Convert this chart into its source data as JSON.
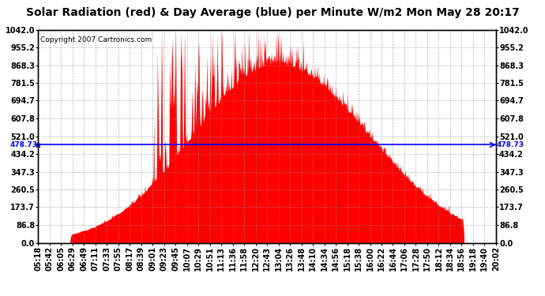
{
  "title": "Solar Radiation (red) & Day Average (blue) per Minute W/m2 Mon May 28 20:17",
  "copyright": "Copyright 2007 Cartronics.com",
  "y_max": 1042.0,
  "y_min": 0.0,
  "y_ticks": [
    0.0,
    86.8,
    173.7,
    260.5,
    347.3,
    434.2,
    521.0,
    607.8,
    694.7,
    781.5,
    868.3,
    955.2,
    1042.0
  ],
  "y_tick_labels": [
    "0.0",
    "86.8",
    "173.7",
    "260.5",
    "347.3",
    "434.2",
    "521.0",
    "607.8",
    "694.7",
    "781.5",
    "868.3",
    "955.2",
    "1042.0"
  ],
  "avg_value": 478.73,
  "avg_label": "478.73",
  "bar_color": "#FF0000",
  "avg_line_color": "#0000FF",
  "bg_color": "#FFFFFF",
  "grid_color": "#888888",
  "title_fontsize": 10,
  "copyright_fontsize": 6.5,
  "tick_fontsize": 7,
  "x_tick_labels": [
    "05:18",
    "05:42",
    "06:05",
    "06:29",
    "06:49",
    "07:11",
    "07:33",
    "07:55",
    "08:17",
    "08:39",
    "09:01",
    "09:23",
    "09:45",
    "10:07",
    "10:29",
    "10:51",
    "11:13",
    "11:36",
    "11:58",
    "12:20",
    "12:43",
    "13:04",
    "13:26",
    "13:48",
    "14:10",
    "14:34",
    "14:56",
    "15:18",
    "15:38",
    "16:00",
    "16:22",
    "16:44",
    "17:06",
    "17:28",
    "17:50",
    "18:12",
    "18:34",
    "18:56",
    "19:18",
    "19:40",
    "20:02"
  ],
  "n_points": 880
}
